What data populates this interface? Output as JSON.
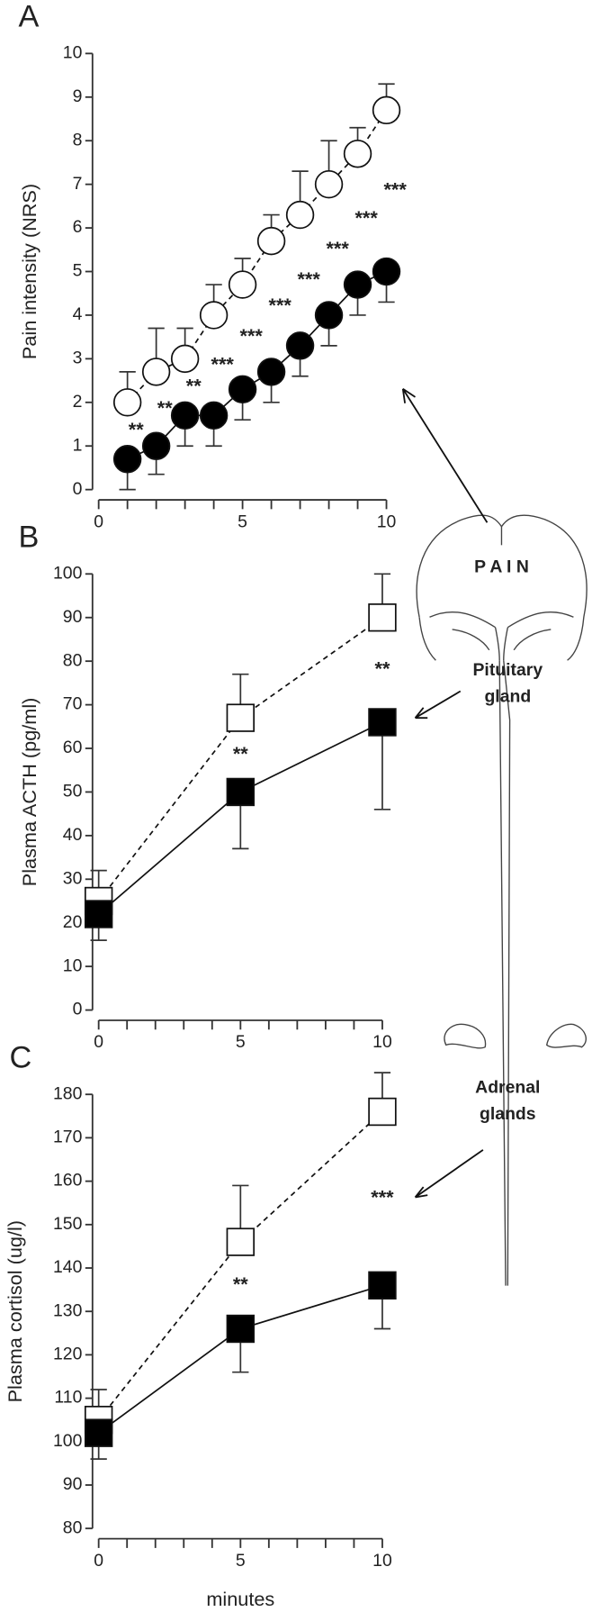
{
  "chart_data": [
    {
      "type": "line",
      "label": "A",
      "ylabel": "Pain intensity (NRS)",
      "x": [
        1,
        2,
        3,
        4,
        5,
        6,
        7,
        8,
        9,
        10
      ],
      "xlim": [
        0,
        10
      ],
      "xticks": [
        0,
        5,
        10
      ],
      "xminorticks": [
        1,
        2,
        3,
        4,
        6,
        7,
        8,
        9
      ],
      "ylim": [
        0,
        10
      ],
      "yticks": [
        0,
        1,
        2,
        3,
        4,
        5,
        6,
        7,
        8,
        9,
        10
      ],
      "series": [
        {
          "marker": "circle",
          "fill": "#ffffff",
          "dashed": true,
          "error_direction": "up",
          "values": [
            2,
            2.7,
            3,
            4,
            4.7,
            5.7,
            6.3,
            7,
            7.7,
            8.7
          ],
          "errors": [
            0.7,
            1,
            0.7,
            0.7,
            0.6,
            0.6,
            1,
            1,
            0.6,
            0.6
          ]
        },
        {
          "marker": "circle",
          "fill": "#000000",
          "dashed": false,
          "error_direction": "down",
          "values": [
            0.7,
            1,
            1.7,
            1.7,
            2.3,
            2.7,
            3.3,
            4,
            4.7,
            5
          ],
          "errors": [
            0.7,
            0.65,
            0.7,
            0.7,
            0.7,
            0.7,
            0.7,
            0.7,
            0.7,
            0.7
          ]
        }
      ],
      "annotations": [
        "**",
        "**",
        "**",
        "***",
        "***",
        "***",
        "***",
        "***",
        "***",
        "***"
      ]
    },
    {
      "type": "line",
      "label": "B",
      "ylabel": "Plasma ACTH (pg/ml)",
      "x": [
        0,
        5,
        10
      ],
      "xlim": [
        0,
        10
      ],
      "xticks": [
        0,
        5,
        10
      ],
      "xminorticks": [
        1,
        2,
        3,
        4,
        6,
        7,
        8,
        9
      ],
      "ylim": [
        0,
        100
      ],
      "yticks": [
        0,
        10,
        20,
        30,
        40,
        50,
        60,
        70,
        80,
        90,
        100
      ],
      "series": [
        {
          "marker": "square",
          "fill": "#ffffff",
          "dashed": true,
          "error_direction": "up",
          "values": [
            25,
            67,
            90
          ],
          "errors": [
            7,
            10,
            10
          ]
        },
        {
          "marker": "square",
          "fill": "#000000",
          "dashed": false,
          "error_direction": "down",
          "values": [
            22,
            50,
            66
          ],
          "errors": [
            6,
            13,
            20
          ]
        }
      ],
      "annotations": [
        null,
        "**",
        "**"
      ]
    },
    {
      "type": "line",
      "label": "C",
      "ylabel": "Plasma cortisol (ug/l)",
      "xlabel": "minutes",
      "x": [
        0,
        5,
        10
      ],
      "xlim": [
        0,
        10
      ],
      "xticks": [
        0,
        5,
        10
      ],
      "xminorticks": [
        1,
        2,
        3,
        4,
        6,
        7,
        8,
        9
      ],
      "ylim": [
        80,
        180
      ],
      "yticks": [
        80,
        90,
        100,
        110,
        120,
        130,
        140,
        150,
        160,
        170,
        180
      ],
      "series": [
        {
          "marker": "square",
          "fill": "#ffffff",
          "dashed": true,
          "error_direction": "up",
          "values": [
            105,
            146,
            176
          ],
          "errors": [
            7,
            13,
            9
          ]
        },
        {
          "marker": "square",
          "fill": "#000000",
          "dashed": false,
          "error_direction": "down",
          "values": [
            102,
            126,
            136
          ],
          "errors": [
            6,
            10,
            10
          ]
        }
      ],
      "annotations": [
        null,
        "**",
        "***"
      ]
    }
  ],
  "diagram": {
    "brain": "P A I N",
    "pituitary": [
      "Pituitary",
      "gland"
    ],
    "adrenal": [
      "Adrenal",
      "glands"
    ]
  }
}
